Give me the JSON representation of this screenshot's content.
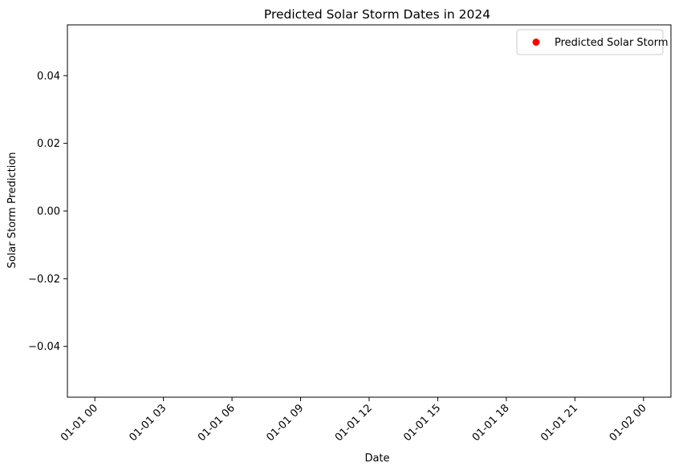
{
  "chart_data": {
    "type": "scatter",
    "title": "Predicted Solar Storm Dates in 2024",
    "xlabel": "Date",
    "ylabel": "Solar Storm Prediction",
    "xlim": [
      "2024-01-01 00:00",
      "2024-01-02 00:00"
    ],
    "ylim": [
      -0.055,
      0.055
    ],
    "x_ticks": [
      {
        "value": "2024-01-01 00:00",
        "label": "01-01 00"
      },
      {
        "value": "2024-01-01 03:00",
        "label": "01-01 03"
      },
      {
        "value": "2024-01-01 06:00",
        "label": "01-01 06"
      },
      {
        "value": "2024-01-01 09:00",
        "label": "01-01 09"
      },
      {
        "value": "2024-01-01 12:00",
        "label": "01-01 12"
      },
      {
        "value": "2024-01-01 15:00",
        "label": "01-01 15"
      },
      {
        "value": "2024-01-01 18:00",
        "label": "01-01 18"
      },
      {
        "value": "2024-01-01 21:00",
        "label": "01-01 21"
      },
      {
        "value": "2024-01-02 00:00",
        "label": "01-02 00"
      }
    ],
    "y_ticks": [
      {
        "value": 0.04,
        "label": "0.04"
      },
      {
        "value": 0.02,
        "label": "0.02"
      },
      {
        "value": 0.0,
        "label": "0.00"
      },
      {
        "value": -0.02,
        "label": "−0.02"
      },
      {
        "value": -0.04,
        "label": "−0.04"
      }
    ],
    "grid": false,
    "legend_position": "top-right",
    "series": [
      {
        "name": "Predicted Solar Storm",
        "color": "#ff0000",
        "marker": "circle",
        "points": []
      }
    ]
  }
}
